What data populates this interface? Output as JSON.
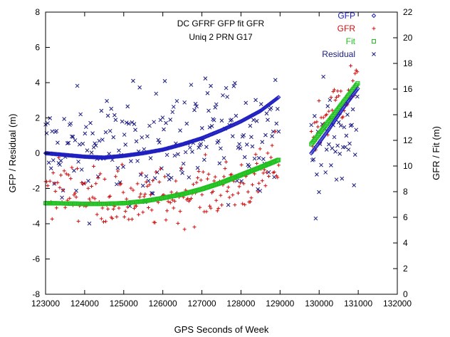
{
  "chart_data": {
    "type": "scatter",
    "title": [
      "DC GFRF GFP fit GFR",
      "Uniq 2 PRN G17"
    ],
    "xlabel": "GPS Seconds of Week",
    "ylabel": "GFP / Residual (m)",
    "y2label": "GFR / Fit (m)",
    "xlim": [
      123000,
      132000
    ],
    "ylim": [
      -8,
      8
    ],
    "y2lim": [
      0,
      22
    ],
    "xticks": [
      123000,
      124000,
      125000,
      126000,
      127000,
      128000,
      129000,
      130000,
      131000,
      132000
    ],
    "yticks": [
      -8,
      -6,
      -4,
      -2,
      0,
      2,
      4,
      6,
      8
    ],
    "y2ticks": [
      0,
      2,
      4,
      6,
      8,
      10,
      12,
      14,
      16,
      18,
      20,
      22
    ],
    "grid": false,
    "legend_position": "top-right",
    "colors": {
      "gfp": "#2020c0",
      "gfr": "#d01010",
      "fit": "#20c020",
      "residual": "#1a1a80"
    },
    "series": [
      {
        "name": "GFP",
        "axis": "left",
        "marker": "diamond",
        "segments": [
          {
            "x": [
              123000,
              123500,
              124000,
              124500,
              125000,
              125500,
              126000,
              126500,
              127000,
              127500,
              128000,
              128500,
              128980
            ],
            "y": [
              0.0,
              -0.1,
              -0.2,
              -0.25,
              -0.15,
              0.0,
              0.2,
              0.5,
              0.85,
              1.3,
              1.8,
              2.4,
              3.2
            ]
          },
          {
            "x": [
              129800,
              130200,
              130600,
              131000
            ],
            "y": [
              0.0,
              1.2,
              2.5,
              3.7
            ]
          }
        ]
      },
      {
        "name": "GFR",
        "axis": "right",
        "marker": "plus",
        "segments": [
          {
            "x": [
              123000,
              123500,
              124000,
              124500,
              125000,
              125500,
              126000,
              126500,
              127000,
              127500,
              128000,
              128500,
              128980
            ],
            "y": [
              8.5,
              8.2,
              8.0,
              7.6,
              7.4,
              7.2,
              7.5,
              7.8,
              8.0,
              8.3,
              8.6,
              9.0,
              10.5
            ]
          },
          {
            "x": [
              129800,
              130200,
              130600,
              131000
            ],
            "y": [
              12.5,
              14.0,
              15.5,
              16.5
            ]
          }
        ],
        "spread": 2.2
      },
      {
        "name": "Fit",
        "axis": "right",
        "marker": "square",
        "segments": [
          {
            "x": [
              123000,
              123500,
              124000,
              124500,
              125000,
              125500,
              126000,
              126500,
              127000,
              127500,
              128000,
              128500,
              128980
            ],
            "y": [
              7.1,
              7.08,
              7.05,
              7.05,
              7.1,
              7.25,
              7.5,
              7.8,
              8.2,
              8.7,
              9.3,
              9.9,
              10.5
            ]
          },
          {
            "x": [
              129800,
              130200,
              130600,
              131000
            ],
            "y": [
              11.7,
              13.3,
              14.9,
              16.5
            ]
          }
        ]
      },
      {
        "name": "Residual",
        "axis": "left",
        "marker": "cross",
        "segments": [
          {
            "x": [
              123000,
              124000,
              125000,
              126000,
              127000,
              128000,
              128980
            ],
            "y": [
              0.0,
              0.2,
              0.4,
              0.6,
              0.9,
              1.2,
              1.5
            ]
          },
          {
            "x": [
              129800,
              130400,
              131000
            ],
            "y": [
              0.5,
              0.3,
              1.0
            ]
          }
        ],
        "spread": 3.2
      }
    ]
  }
}
